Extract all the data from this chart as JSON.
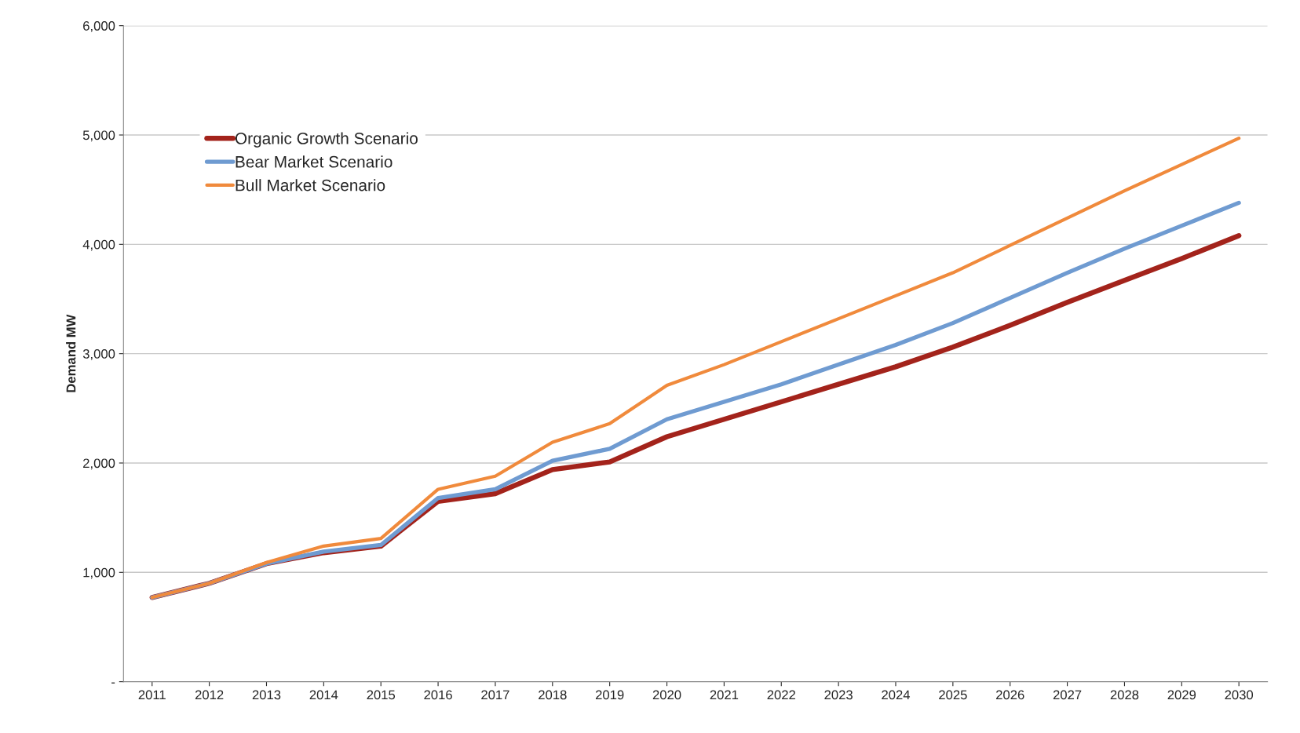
{
  "chart_data": {
    "type": "line",
    "ylabel": "Demand MW",
    "categories": [
      "2011",
      "2012",
      "2013",
      "2014",
      "2015",
      "2016",
      "2017",
      "2018",
      "2019",
      "2020",
      "2021",
      "2022",
      "2023",
      "2024",
      "2025",
      "2026",
      "2027",
      "2028",
      "2029",
      "2030"
    ],
    "series": [
      {
        "name": "Organic Growth Scenario",
        "color": "#a3231b",
        "values": [
          770,
          900,
          1080,
          1180,
          1240,
          1650,
          1720,
          1940,
          2010,
          2240,
          2400,
          2560,
          2720,
          2880,
          3060,
          3260,
          3470,
          3670,
          3870,
          4080
        ]
      },
      {
        "name": "Bear Market Scenario",
        "color": "#6f9bd1",
        "values": [
          770,
          900,
          1080,
          1190,
          1250,
          1680,
          1760,
          2020,
          2130,
          2400,
          2560,
          2720,
          2900,
          3080,
          3280,
          3510,
          3740,
          3960,
          4170,
          4380
        ]
      },
      {
        "name": "Bull Market Scenario",
        "color": "#f08a3c",
        "values": [
          770,
          900,
          1090,
          1240,
          1310,
          1760,
          1880,
          2190,
          2360,
          2710,
          2900,
          3110,
          3320,
          3530,
          3740,
          3990,
          4240,
          4490,
          4730,
          4970
        ]
      }
    ],
    "ylim": [
      0,
      6000
    ],
    "yticks": [
      {
        "value": 0,
        "label": "-"
      },
      {
        "value": 1000,
        "label": "1,000"
      },
      {
        "value": 2000,
        "label": "2,000"
      },
      {
        "value": 3000,
        "label": "3,000"
      },
      {
        "value": 4000,
        "label": "4,000"
      },
      {
        "value": 5000,
        "label": "5,000"
      },
      {
        "value": 6000,
        "label": "6,000"
      }
    ],
    "grid": "y",
    "legend": "top left",
    "marker": "none",
    "line_style": "solid"
  }
}
